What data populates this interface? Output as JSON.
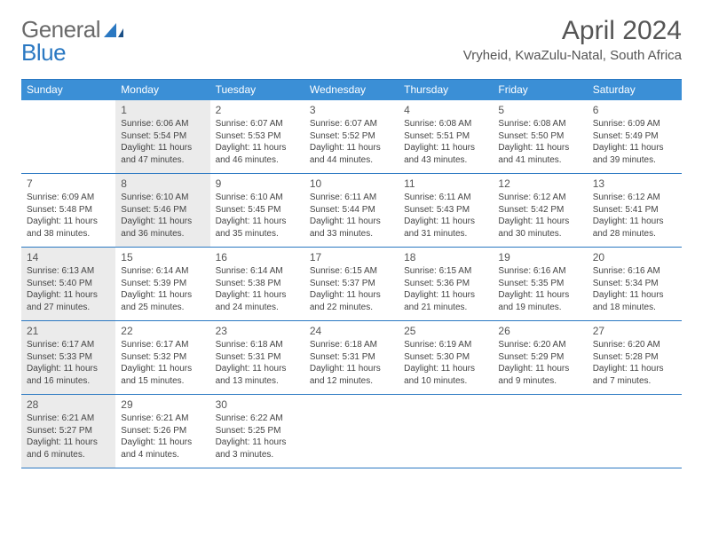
{
  "logo": {
    "part1": "General",
    "part2": "Blue"
  },
  "header": {
    "month_title": "April 2024",
    "location": "Vryheid, KwaZulu-Natal, South Africa"
  },
  "colors": {
    "header_bg": "#3b8fd6",
    "rule": "#2a78c2",
    "shade": "#ebebeb",
    "text": "#444444",
    "title": "#555555",
    "logo_dark": "#6a6a6a",
    "logo_blue": "#2a78c2"
  },
  "day_labels": [
    "Sunday",
    "Monday",
    "Tuesday",
    "Wednesday",
    "Thursday",
    "Friday",
    "Saturday"
  ],
  "weeks": [
    [
      {
        "shaded": false
      },
      {
        "num": "1",
        "shaded": true,
        "sunrise": "Sunrise: 6:06 AM",
        "sunset": "Sunset: 5:54 PM",
        "dl1": "Daylight: 11 hours",
        "dl2": "and 47 minutes."
      },
      {
        "num": "2",
        "shaded": false,
        "sunrise": "Sunrise: 6:07 AM",
        "sunset": "Sunset: 5:53 PM",
        "dl1": "Daylight: 11 hours",
        "dl2": "and 46 minutes."
      },
      {
        "num": "3",
        "shaded": false,
        "sunrise": "Sunrise: 6:07 AM",
        "sunset": "Sunset: 5:52 PM",
        "dl1": "Daylight: 11 hours",
        "dl2": "and 44 minutes."
      },
      {
        "num": "4",
        "shaded": false,
        "sunrise": "Sunrise: 6:08 AM",
        "sunset": "Sunset: 5:51 PM",
        "dl1": "Daylight: 11 hours",
        "dl2": "and 43 minutes."
      },
      {
        "num": "5",
        "shaded": false,
        "sunrise": "Sunrise: 6:08 AM",
        "sunset": "Sunset: 5:50 PM",
        "dl1": "Daylight: 11 hours",
        "dl2": "and 41 minutes."
      },
      {
        "num": "6",
        "shaded": false,
        "sunrise": "Sunrise: 6:09 AM",
        "sunset": "Sunset: 5:49 PM",
        "dl1": "Daylight: 11 hours",
        "dl2": "and 39 minutes."
      }
    ],
    [
      {
        "num": "7",
        "shaded": false,
        "sunrise": "Sunrise: 6:09 AM",
        "sunset": "Sunset: 5:48 PM",
        "dl1": "Daylight: 11 hours",
        "dl2": "and 38 minutes."
      },
      {
        "num": "8",
        "shaded": true,
        "sunrise": "Sunrise: 6:10 AM",
        "sunset": "Sunset: 5:46 PM",
        "dl1": "Daylight: 11 hours",
        "dl2": "and 36 minutes."
      },
      {
        "num": "9",
        "shaded": false,
        "sunrise": "Sunrise: 6:10 AM",
        "sunset": "Sunset: 5:45 PM",
        "dl1": "Daylight: 11 hours",
        "dl2": "and 35 minutes."
      },
      {
        "num": "10",
        "shaded": false,
        "sunrise": "Sunrise: 6:11 AM",
        "sunset": "Sunset: 5:44 PM",
        "dl1": "Daylight: 11 hours",
        "dl2": "and 33 minutes."
      },
      {
        "num": "11",
        "shaded": false,
        "sunrise": "Sunrise: 6:11 AM",
        "sunset": "Sunset: 5:43 PM",
        "dl1": "Daylight: 11 hours",
        "dl2": "and 31 minutes."
      },
      {
        "num": "12",
        "shaded": false,
        "sunrise": "Sunrise: 6:12 AM",
        "sunset": "Sunset: 5:42 PM",
        "dl1": "Daylight: 11 hours",
        "dl2": "and 30 minutes."
      },
      {
        "num": "13",
        "shaded": false,
        "sunrise": "Sunrise: 6:12 AM",
        "sunset": "Sunset: 5:41 PM",
        "dl1": "Daylight: 11 hours",
        "dl2": "and 28 minutes."
      }
    ],
    [
      {
        "num": "14",
        "shaded": true,
        "sunrise": "Sunrise: 6:13 AM",
        "sunset": "Sunset: 5:40 PM",
        "dl1": "Daylight: 11 hours",
        "dl2": "and 27 minutes."
      },
      {
        "num": "15",
        "shaded": false,
        "sunrise": "Sunrise: 6:14 AM",
        "sunset": "Sunset: 5:39 PM",
        "dl1": "Daylight: 11 hours",
        "dl2": "and 25 minutes."
      },
      {
        "num": "16",
        "shaded": false,
        "sunrise": "Sunrise: 6:14 AM",
        "sunset": "Sunset: 5:38 PM",
        "dl1": "Daylight: 11 hours",
        "dl2": "and 24 minutes."
      },
      {
        "num": "17",
        "shaded": false,
        "sunrise": "Sunrise: 6:15 AM",
        "sunset": "Sunset: 5:37 PM",
        "dl1": "Daylight: 11 hours",
        "dl2": "and 22 minutes."
      },
      {
        "num": "18",
        "shaded": false,
        "sunrise": "Sunrise: 6:15 AM",
        "sunset": "Sunset: 5:36 PM",
        "dl1": "Daylight: 11 hours",
        "dl2": "and 21 minutes."
      },
      {
        "num": "19",
        "shaded": false,
        "sunrise": "Sunrise: 6:16 AM",
        "sunset": "Sunset: 5:35 PM",
        "dl1": "Daylight: 11 hours",
        "dl2": "and 19 minutes."
      },
      {
        "num": "20",
        "shaded": false,
        "sunrise": "Sunrise: 6:16 AM",
        "sunset": "Sunset: 5:34 PM",
        "dl1": "Daylight: 11 hours",
        "dl2": "and 18 minutes."
      }
    ],
    [
      {
        "num": "21",
        "shaded": true,
        "sunrise": "Sunrise: 6:17 AM",
        "sunset": "Sunset: 5:33 PM",
        "dl1": "Daylight: 11 hours",
        "dl2": "and 16 minutes."
      },
      {
        "num": "22",
        "shaded": false,
        "sunrise": "Sunrise: 6:17 AM",
        "sunset": "Sunset: 5:32 PM",
        "dl1": "Daylight: 11 hours",
        "dl2": "and 15 minutes."
      },
      {
        "num": "23",
        "shaded": false,
        "sunrise": "Sunrise: 6:18 AM",
        "sunset": "Sunset: 5:31 PM",
        "dl1": "Daylight: 11 hours",
        "dl2": "and 13 minutes."
      },
      {
        "num": "24",
        "shaded": false,
        "sunrise": "Sunrise: 6:18 AM",
        "sunset": "Sunset: 5:31 PM",
        "dl1": "Daylight: 11 hours",
        "dl2": "and 12 minutes."
      },
      {
        "num": "25",
        "shaded": false,
        "sunrise": "Sunrise: 6:19 AM",
        "sunset": "Sunset: 5:30 PM",
        "dl1": "Daylight: 11 hours",
        "dl2": "and 10 minutes."
      },
      {
        "num": "26",
        "shaded": false,
        "sunrise": "Sunrise: 6:20 AM",
        "sunset": "Sunset: 5:29 PM",
        "dl1": "Daylight: 11 hours",
        "dl2": "and 9 minutes."
      },
      {
        "num": "27",
        "shaded": false,
        "sunrise": "Sunrise: 6:20 AM",
        "sunset": "Sunset: 5:28 PM",
        "dl1": "Daylight: 11 hours",
        "dl2": "and 7 minutes."
      }
    ],
    [
      {
        "num": "28",
        "shaded": true,
        "sunrise": "Sunrise: 6:21 AM",
        "sunset": "Sunset: 5:27 PM",
        "dl1": "Daylight: 11 hours",
        "dl2": "and 6 minutes."
      },
      {
        "num": "29",
        "shaded": false,
        "sunrise": "Sunrise: 6:21 AM",
        "sunset": "Sunset: 5:26 PM",
        "dl1": "Daylight: 11 hours",
        "dl2": "and 4 minutes."
      },
      {
        "num": "30",
        "shaded": false,
        "sunrise": "Sunrise: 6:22 AM",
        "sunset": "Sunset: 5:25 PM",
        "dl1": "Daylight: 11 hours",
        "dl2": "and 3 minutes."
      },
      {
        "shaded": false
      },
      {
        "shaded": false
      },
      {
        "shaded": false
      },
      {
        "shaded": false
      }
    ]
  ]
}
